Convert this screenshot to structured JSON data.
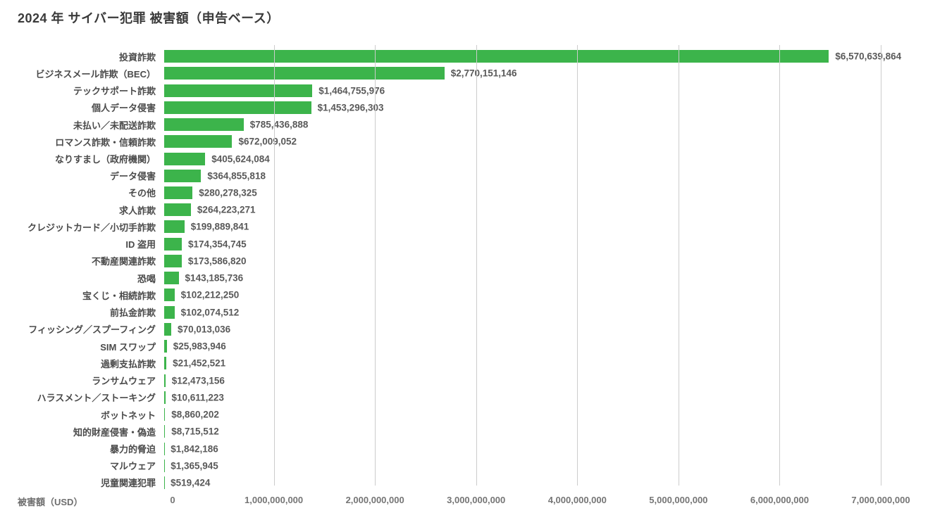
{
  "title": "2024 年 サイバー犯罪 被害額（申告ベース）",
  "colors": {
    "bar": "#3cb44b",
    "gridline": "#cccccc",
    "title_text": "#3a3a3a",
    "category_text": "#4a4a4a",
    "value_text": "#595959",
    "tick_text": "#757575",
    "background": "#ffffff"
  },
  "chart_data": {
    "type": "bar",
    "orientation": "horizontal",
    "title": "2024 年 サイバー犯罪 被害額（申告ベース）",
    "xlabel": "被害額（USD）",
    "ylabel": "",
    "xlim": [
      0,
      7400000000
    ],
    "grid": true,
    "x_ticks": [
      0,
      1000000000,
      2000000000,
      3000000000,
      4000000000,
      5000000000,
      6000000000,
      7000000000
    ],
    "x_tick_labels": [
      "0",
      "1,000,000,000",
      "2,000,000,000",
      "3,000,000,000",
      "4,000,000,000",
      "5,000,000,000",
      "6,000,000,000",
      "7,000,000,000"
    ],
    "categories": [
      "投資詐欺",
      "ビジネスメール詐欺（BEC）",
      "テックサポート詐欺",
      "個人データ侵害",
      "未払い／未配送詐欺",
      "ロマンス詐欺・信頼詐欺",
      "なりすまし（政府機関）",
      "データ侵害",
      "その他",
      "求人詐欺",
      "クレジットカード／小切手詐欺",
      "ID 盗用",
      "不動産関連詐欺",
      "恐喝",
      "宝くじ・相続詐欺",
      "前払金詐欺",
      "フィッシング／スプーフィング",
      "SIM スワップ",
      "過剰支払詐欺",
      "ランサムウェア",
      "ハラスメント／ストーキング",
      "ボットネット",
      "知的財産侵害・偽造",
      "暴力的脅迫",
      "マルウェア",
      "児童関連犯罪"
    ],
    "values": [
      6570639864,
      2770151146,
      1464755976,
      1453296303,
      785436888,
      672009052,
      405624084,
      364855818,
      280278325,
      264223271,
      199889841,
      174354745,
      173586820,
      143185736,
      102212250,
      102074512,
      70013036,
      25983946,
      21452521,
      12473156,
      10611223,
      8860202,
      8715512,
      1842186,
      1365945,
      519424
    ],
    "value_labels": [
      "$6,570,639,864",
      "$2,770,151,146",
      "$1,464,755,976",
      "$1,453,296,303",
      "$785,436,888",
      "$672,009,052",
      "$405,624,084",
      "$364,855,818",
      "$280,278,325",
      "$264,223,271",
      "$199,889,841",
      "$174,354,745",
      "$173,586,820",
      "$143,185,736",
      "$102,212,250",
      "$102,074,512",
      "$70,013,036",
      "$25,983,946",
      "$21,452,521",
      "$12,473,156",
      "$10,611,223",
      "$8,860,202",
      "$8,715,512",
      "$1,842,186",
      "$1,365,945",
      "$519,424"
    ]
  }
}
